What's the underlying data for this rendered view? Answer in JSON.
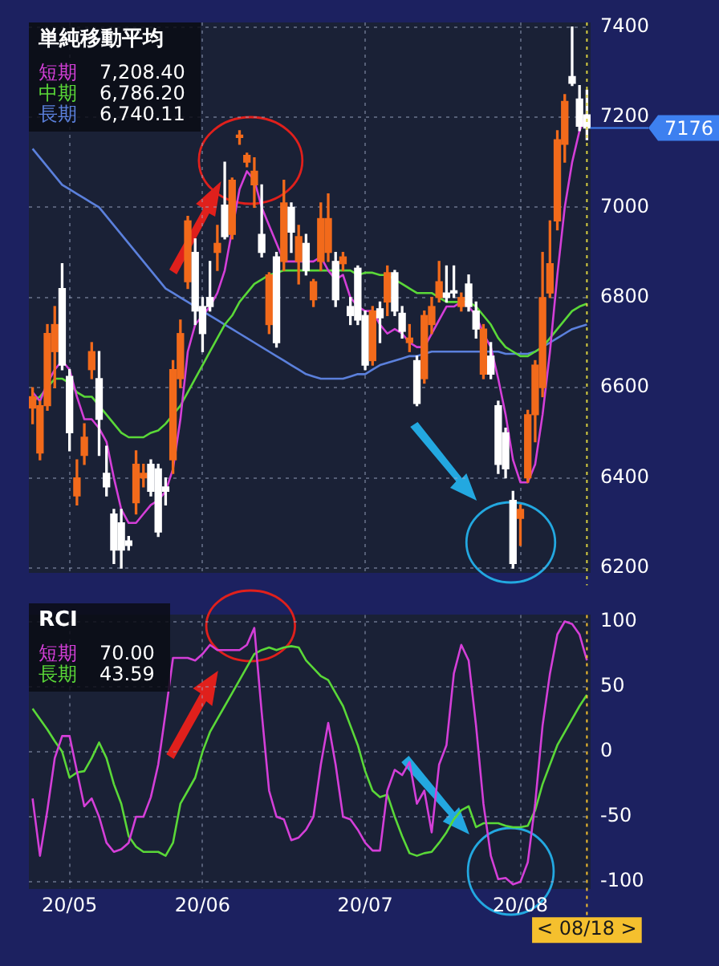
{
  "chart_data": [
    {
      "type": "candlestick",
      "title": "単純移動平均",
      "legend": "top left",
      "grid": true,
      "tick_labels": "y",
      "categories": [
        null,
        null,
        null,
        null,
        null,
        "20/05",
        null,
        null,
        null,
        null,
        null,
        null,
        null,
        null,
        null,
        null,
        null,
        null,
        null,
        null,
        null,
        null,
        null,
        "20/06",
        null,
        null,
        null,
        null,
        null,
        null,
        null,
        null,
        null,
        null,
        null,
        null,
        null,
        null,
        null,
        null,
        null,
        null,
        null,
        null,
        null,
        "20/07",
        null,
        null,
        null,
        null,
        null,
        null,
        null,
        null,
        null,
        null,
        null,
        null,
        null,
        null,
        null,
        null,
        null,
        null,
        null,
        null,
        "20/08",
        null,
        null,
        null,
        null,
        null,
        null,
        null,
        null,
        "< 08/18 >"
      ],
      "ohlc": [
        [
          6555,
          6600,
          6520,
          6580
        ],
        [
          6455,
          6570,
          6440,
          6560
        ],
        [
          6560,
          6740,
          6550,
          6720
        ],
        [
          6680,
          6780,
          6600,
          6740
        ],
        [
          6820,
          6875,
          6640,
          6650
        ],
        [
          6625,
          6640,
          6460,
          6500
        ],
        [
          6360,
          6440,
          6340,
          6400
        ],
        [
          6450,
          6520,
          6430,
          6490
        ],
        [
          6640,
          6700,
          6620,
          6680
        ],
        [
          6620,
          6680,
          6450,
          6530
        ],
        [
          6410,
          6470,
          6360,
          6380
        ],
        [
          6320,
          6330,
          6210,
          6240
        ],
        [
          6300,
          6330,
          6200,
          6240
        ],
        [
          6260,
          6270,
          6240,
          6250
        ],
        [
          6345,
          6460,
          6320,
          6430
        ],
        [
          6400,
          6430,
          6380,
          6410
        ],
        [
          6430,
          6440,
          6360,
          6370
        ],
        [
          6420,
          6430,
          6270,
          6280
        ],
        [
          6380,
          6400,
          6340,
          6370
        ],
        [
          6440,
          6660,
          6410,
          6640
        ],
        [
          6620,
          6750,
          6600,
          6720
        ],
        [
          6835,
          6980,
          6820,
          6970
        ],
        [
          6900,
          6930,
          6740,
          6770
        ],
        [
          6780,
          6800,
          6680,
          6720
        ],
        [
          6800,
          6880,
          6770,
          6780
        ],
        [
          6900,
          6960,
          6860,
          6920
        ],
        [
          7005,
          7100,
          6930,
          6935
        ],
        [
          6940,
          7065,
          6930,
          7060
        ],
        [
          7155,
          7170,
          7140,
          7160
        ],
        [
          7100,
          7120,
          7090,
          7115
        ],
        [
          7050,
          7110,
          7000,
          7080
        ],
        [
          6940,
          7050,
          6890,
          6900
        ],
        [
          6740,
          6855,
          6720,
          6850
        ],
        [
          6890,
          6900,
          6690,
          6700
        ],
        [
          6880,
          7060,
          6860,
          7010
        ],
        [
          7000,
          7010,
          6900,
          6945
        ],
        [
          6880,
          6960,
          6830,
          6935
        ],
        [
          6920,
          6940,
          6850,
          6860
        ],
        [
          6795,
          6840,
          6780,
          6835
        ],
        [
          6880,
          7010,
          6860,
          6975
        ],
        [
          6900,
          7030,
          6880,
          6975
        ],
        [
          6880,
          6900,
          6780,
          6795
        ],
        [
          6875,
          6900,
          6860,
          6890
        ],
        [
          6780,
          6800,
          6740,
          6760
        ],
        [
          6865,
          6870,
          6740,
          6750
        ],
        [
          6760,
          6770,
          6640,
          6650
        ],
        [
          6660,
          6780,
          6650,
          6770
        ],
        [
          6775,
          6790,
          6700,
          6755
        ],
        [
          6790,
          6870,
          6760,
          6855
        ],
        [
          6855,
          6860,
          6760,
          6770
        ],
        [
          6765,
          6780,
          6710,
          6725
        ],
        [
          6700,
          6740,
          6680,
          6710
        ],
        [
          6660,
          6670,
          6560,
          6565
        ],
        [
          6620,
          6770,
          6610,
          6760
        ],
        [
          6740,
          6800,
          6720,
          6780
        ],
        [
          6800,
          6880,
          6790,
          6835
        ],
        [
          6810,
          6870,
          6790,
          6800
        ],
        [
          6815,
          6870,
          6800,
          6810
        ],
        [
          6780,
          6810,
          6770,
          6800
        ],
        [
          6830,
          6850,
          6770,
          6780
        ],
        [
          6770,
          6790,
          6710,
          6730
        ],
        [
          6630,
          6740,
          6620,
          6730
        ],
        [
          6670,
          6700,
          6620,
          6630
        ],
        [
          6560,
          6570,
          6410,
          6430
        ],
        [
          6500,
          6510,
          6400,
          6420
        ],
        [
          6350,
          6370,
          6200,
          6210
        ],
        [
          6310,
          6340,
          6250,
          6330
        ],
        [
          6400,
          6550,
          6390,
          6540
        ],
        [
          6540,
          6660,
          6480,
          6650
        ],
        [
          6600,
          6900,
          6580,
          6800
        ],
        [
          6810,
          6970,
          6800,
          6875
        ],
        [
          6970,
          7170,
          6950,
          7150
        ],
        [
          7140,
          7250,
          7100,
          7235
        ],
        [
          7290,
          7400,
          7270,
          7275
        ],
        [
          7240,
          7270,
          7170,
          7180
        ],
        [
          7205,
          7260,
          7150,
          7176
        ]
      ],
      "colors": [
        "#f26a1b",
        "#f26a1b",
        "#f26a1b",
        "#f26a1b",
        "#ffffff",
        "#ffffff",
        "#f26a1b",
        "#f26a1b",
        "#f26a1b",
        "#ffffff",
        "#ffffff",
        "#ffffff",
        "#ffffff",
        "#ffffff",
        "#f26a1b",
        "#f26a1b",
        "#ffffff",
        "#ffffff",
        "#ffffff",
        "#f26a1b",
        "#f26a1b",
        "#f26a1b",
        "#ffffff",
        "#ffffff",
        "#ffffff",
        "#f26a1b",
        "#ffffff",
        "#f26a1b",
        "#f26a1b",
        "#f26a1b",
        "#f26a1b",
        "#ffffff",
        "#f26a1b",
        "#ffffff",
        "#f26a1b",
        "#ffffff",
        "#f26a1b",
        "#ffffff",
        "#f26a1b",
        "#f26a1b",
        "#f26a1b",
        "#ffffff",
        "#f26a1b",
        "#ffffff",
        "#ffffff",
        "#ffffff",
        "#f26a1b",
        "#ffffff",
        "#f26a1b",
        "#ffffff",
        "#ffffff",
        "#f26a1b",
        "#ffffff",
        "#f26a1b",
        "#f26a1b",
        "#f26a1b",
        "#ffffff",
        "#ffffff",
        "#f26a1b",
        "#ffffff",
        "#ffffff",
        "#f26a1b",
        "#ffffff",
        "#ffffff",
        "#ffffff",
        "#ffffff",
        "#f26a1b",
        "#f26a1b",
        "#f26a1b",
        "#f26a1b",
        "#f26a1b",
        "#f26a1b",
        "#f26a1b",
        "#ffffff",
        "#ffffff",
        "#ffffff"
      ],
      "series": [
        {
          "type": "line",
          "name": "短期",
          "color": "#d43fd8",
          "values": [
            6590,
            6570,
            6610,
            6640,
            6660,
            6640,
            6580,
            6530,
            6530,
            6510,
            6480,
            6400,
            6330,
            6300,
            6300,
            6320,
            6340,
            6350,
            6370,
            6420,
            6530,
            6680,
            6740,
            6760,
            6780,
            6810,
            6860,
            6950,
            7040,
            7080,
            7060,
            7000,
            6960,
            6920,
            6880,
            6880,
            6880,
            6880,
            6880,
            6890,
            6860,
            6840,
            6850,
            6800,
            6780,
            6770,
            6770,
            6740,
            6720,
            6730,
            6720,
            6700,
            6690,
            6690,
            6720,
            6750,
            6780,
            6780,
            6790,
            6780,
            6760,
            6720,
            6690,
            6620,
            6540,
            6440,
            6390,
            6390,
            6430,
            6540,
            6680,
            6850,
            7000,
            7100,
            7170,
            7208.4
          ]
        },
        {
          "type": "line",
          "name": "中期",
          "color": "#5ad838",
          "values": [
            6570,
            6580,
            6600,
            6620,
            6620,
            6610,
            6590,
            6580,
            6580,
            6560,
            6540,
            6520,
            6500,
            6490,
            6490,
            6490,
            6500,
            6505,
            6520,
            6540,
            6560,
            6590,
            6620,
            6650,
            6680,
            6710,
            6740,
            6760,
            6790,
            6810,
            6830,
            6840,
            6850,
            6855,
            6860,
            6860,
            6860,
            6860,
            6860,
            6860,
            6860,
            6860,
            6860,
            6860,
            6850,
            6855,
            6855,
            6850,
            6850,
            6840,
            6830,
            6820,
            6810,
            6810,
            6810,
            6800,
            6790,
            6790,
            6790,
            6790,
            6780,
            6760,
            6740,
            6710,
            6690,
            6680,
            6670,
            6670,
            6680,
            6690,
            6710,
            6730,
            6750,
            6770,
            6780,
            6786.2
          ]
        },
        {
          "type": "line",
          "name": "長期",
          "color": "#5b80dc",
          "values": [
            7130,
            7110,
            7090,
            7070,
            7050,
            7040,
            7030,
            7020,
            7010,
            7000,
            6980,
            6960,
            6940,
            6920,
            6900,
            6880,
            6860,
            6840,
            6820,
            6810,
            6800,
            6790,
            6780,
            6770,
            6760,
            6750,
            6740,
            6730,
            6720,
            6710,
            6700,
            6690,
            6680,
            6670,
            6660,
            6650,
            6640,
            6630,
            6625,
            6620,
            6620,
            6620,
            6620,
            6625,
            6630,
            6630,
            6640,
            6650,
            6655,
            6660,
            6665,
            6670,
            6670,
            6675,
            6680,
            6680,
            6680,
            6680,
            6680,
            6680,
            6680,
            6680,
            6680,
            6680,
            6675,
            6675,
            6675,
            6675,
            6680,
            6690,
            6700,
            6710,
            6720,
            6730,
            6735,
            6740.11
          ]
        }
      ],
      "annotations": [
        "7,208.40",
        "6,786.20",
        "6,740.11",
        {
          "text": "7176",
          "x": "< 08/18 >",
          "y": 7176
        }
      ],
      "ylim": [
        6190,
        7410
      ],
      "yticks": [
        6200,
        6400,
        6600,
        6800,
        7000,
        7200,
        7400
      ],
      "ref_lines": [
        {
          "axis": "x",
          "value": "< 08/18 >",
          "color": "#d8d040",
          "line_style": "dotted"
        }
      ]
    },
    {
      "type": "line",
      "title": "RCI",
      "legend": "top left",
      "grid": true,
      "categories": [
        null,
        null,
        null,
        null,
        null,
        "20/05",
        null,
        null,
        null,
        null,
        null,
        null,
        null,
        null,
        null,
        null,
        null,
        null,
        null,
        null,
        null,
        null,
        null,
        "20/06",
        null,
        null,
        null,
        null,
        null,
        null,
        null,
        null,
        null,
        null,
        null,
        null,
        null,
        null,
        null,
        null,
        null,
        null,
        null,
        null,
        null,
        "20/07",
        null,
        null,
        null,
        null,
        null,
        null,
        null,
        null,
        null,
        null,
        null,
        null,
        null,
        null,
        null,
        null,
        null,
        null,
        null,
        null,
        "20/08",
        null,
        null,
        null,
        null,
        null,
        null,
        null,
        null,
        "< 08/18 >"
      ],
      "series": [
        {
          "name": "短期",
          "color": "#d43fd8",
          "values": [
            -36,
            -80,
            -45,
            -5,
            12,
            12,
            -15,
            -42,
            -36,
            -50,
            -70,
            -77,
            -75,
            -70,
            -50,
            -50,
            -35,
            -10,
            30,
            72,
            72,
            72,
            70,
            75,
            82,
            78,
            78,
            78,
            78,
            82,
            95,
            30,
            -30,
            -50,
            -52,
            -68,
            -66,
            -60,
            -50,
            -10,
            22,
            -10,
            -50,
            -52,
            -60,
            -70,
            -76,
            -76,
            -30,
            -14,
            -18,
            -8,
            -40,
            -30,
            -62,
            -10,
            5,
            60,
            82,
            70,
            20,
            -40,
            -80,
            -98,
            -97,
            -102,
            -100,
            -85,
            -40,
            20,
            60,
            90,
            100,
            98,
            90,
            70
          ]
        },
        {
          "name": "長期",
          "color": "#5ad838",
          "values": [
            33,
            25,
            17,
            8,
            0,
            -20,
            -16,
            -15,
            -5,
            7,
            -5,
            -25,
            -40,
            -65,
            -73,
            -77,
            -77,
            -77,
            -80,
            -70,
            -40,
            -30,
            -20,
            0,
            15,
            25,
            35,
            45,
            55,
            65,
            75,
            78,
            80,
            78,
            80,
            81,
            80,
            70,
            64,
            58,
            55,
            45,
            35,
            20,
            5,
            -15,
            -30,
            -35,
            -33,
            -50,
            -65,
            -78,
            -80,
            -78,
            -77,
            -70,
            -62,
            -52,
            -45,
            -42,
            -58,
            -55,
            -55,
            -55,
            -57,
            -58,
            -58,
            -57,
            -45,
            -25,
            -10,
            5,
            15,
            25,
            35,
            43.59
          ]
        }
      ],
      "annotations": [
        "70.00",
        "43.59"
      ],
      "ylim": [
        -105,
        105
      ],
      "yticks": [
        -100,
        -50,
        0,
        50,
        100
      ],
      "ref_lines": [
        {
          "axis": "x",
          "value": "< 08/18 >",
          "color": "#f5c02e",
          "line_style": "dotted"
        }
      ]
    }
  ]
}
